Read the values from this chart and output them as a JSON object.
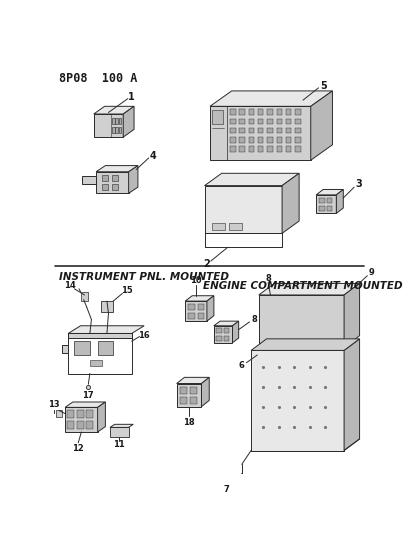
{
  "title": "8P08  100 A",
  "label_instrument": "INSTRUMENT PNL. MOUNTED",
  "label_engine": "ENGINE COMPARTMENT MOUNTED",
  "bg_color": "#ffffff",
  "line_color": "#2a2a2a",
  "text_color": "#1a1a1a",
  "title_fontsize": 8.5,
  "label_fontsize": 7.5,
  "num_fontsize": 6.5,
  "lw": 0.7
}
